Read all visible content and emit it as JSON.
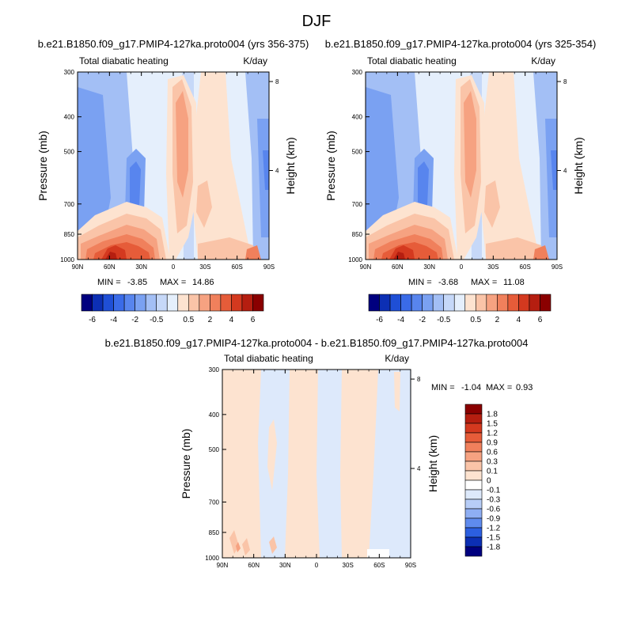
{
  "figure": {
    "title": "DJF"
  },
  "chart_data": [
    {
      "type": "heatmap",
      "title": "b.e21.B1850.f09_g17.PMIP4-127ka.proto004 (yrs 356-375)",
      "left_label": "Total diabatic heating",
      "right_label": "K/day",
      "ylabel": "Pressure (mb)",
      "ylabel_right": "Height (km)",
      "x_ticks": [
        "90N",
        "60N",
        "30N",
        "0",
        "30S",
        "60S",
        "90S"
      ],
      "y_ticks": [
        "300",
        "400",
        "500",
        "700",
        "850",
        "1000"
      ],
      "y_right_ticks": [
        "8",
        "4"
      ],
      "stats": {
        "min_label": "MIN =",
        "min": "-3.85",
        "max_label": "MAX =",
        "max": "14.86"
      },
      "colorbar": {
        "orientation": "horizontal",
        "labels": [
          "-6",
          "-4",
          "-2",
          "-0.5",
          "0.5",
          "2",
          "4",
          "6"
        ],
        "colors": [
          "#00007f",
          "#0c2fb4",
          "#1f4fd6",
          "#3a6be8",
          "#5885ee",
          "#7aa1f2",
          "#a3bff5",
          "#c6d8f8",
          "#e5effc",
          "#fde3d0",
          "#fac4a8",
          "#f6a281",
          "#f0805c",
          "#e65c39",
          "#d4391f",
          "#b51e10",
          "#8a0000"
        ]
      }
    },
    {
      "type": "heatmap",
      "title": "b.e21.B1850.f09_g17.PMIP4-127ka.proto004 (yrs 325-354)",
      "left_label": "Total diabatic heating",
      "right_label": "K/day",
      "ylabel": "Pressure (mb)",
      "ylabel_right": "Height (km)",
      "x_ticks": [
        "90N",
        "60N",
        "30N",
        "0",
        "30S",
        "60S",
        "90S"
      ],
      "y_ticks": [
        "300",
        "400",
        "500",
        "700",
        "850",
        "1000"
      ],
      "y_right_ticks": [
        "8",
        "4"
      ],
      "stats": {
        "min_label": "MIN =",
        "min": "-3.68",
        "max_label": "MAX =",
        "max": "11.08"
      },
      "colorbar": {
        "orientation": "horizontal",
        "labels": [
          "-6",
          "-4",
          "-2",
          "-0.5",
          "0.5",
          "2",
          "4",
          "6"
        ],
        "colors": [
          "#00007f",
          "#0c2fb4",
          "#1f4fd6",
          "#3a6be8",
          "#5885ee",
          "#7aa1f2",
          "#a3bff5",
          "#c6d8f8",
          "#e5effc",
          "#fde3d0",
          "#fac4a8",
          "#f6a281",
          "#f0805c",
          "#e65c39",
          "#d4391f",
          "#b51e10",
          "#8a0000"
        ]
      }
    },
    {
      "type": "heatmap",
      "title": "b.e21.B1850.f09_g17.PMIP4-127ka.proto004 - b.e21.B1850.f09_g17.PMIP4-127ka.proto004",
      "left_label": "Total diabatic heating",
      "right_label": "K/day",
      "ylabel": "Pressure (mb)",
      "ylabel_right": "Height (km)",
      "x_ticks": [
        "90N",
        "60N",
        "30N",
        "0",
        "30S",
        "60S",
        "90S"
      ],
      "y_ticks": [
        "300",
        "400",
        "500",
        "700",
        "850",
        "1000"
      ],
      "y_right_ticks": [
        "8",
        "4"
      ],
      "stats": {
        "min_label": "MIN =",
        "min": "-1.04",
        "max_label": "MAX =",
        "max": "0.93"
      },
      "colorbar": {
        "orientation": "vertical",
        "labels": [
          "1.8",
          "1.5",
          "1.2",
          "0.9",
          "0.6",
          "0.3",
          "0.1",
          "0",
          "-0.1",
          "-0.3",
          "-0.6",
          "-0.9",
          "-1.2",
          "-1.5",
          "-1.8"
        ],
        "colors": [
          "#8a0000",
          "#b51e10",
          "#d4391f",
          "#e65c39",
          "#f0805c",
          "#f6a281",
          "#fac4a8",
          "#fde3d0",
          "#ffffff",
          "#dde9fb",
          "#b7cdf7",
          "#8eaef3",
          "#5f8bee",
          "#2c5fe0",
          "#0c2fb4",
          "#00007f"
        ]
      }
    }
  ]
}
